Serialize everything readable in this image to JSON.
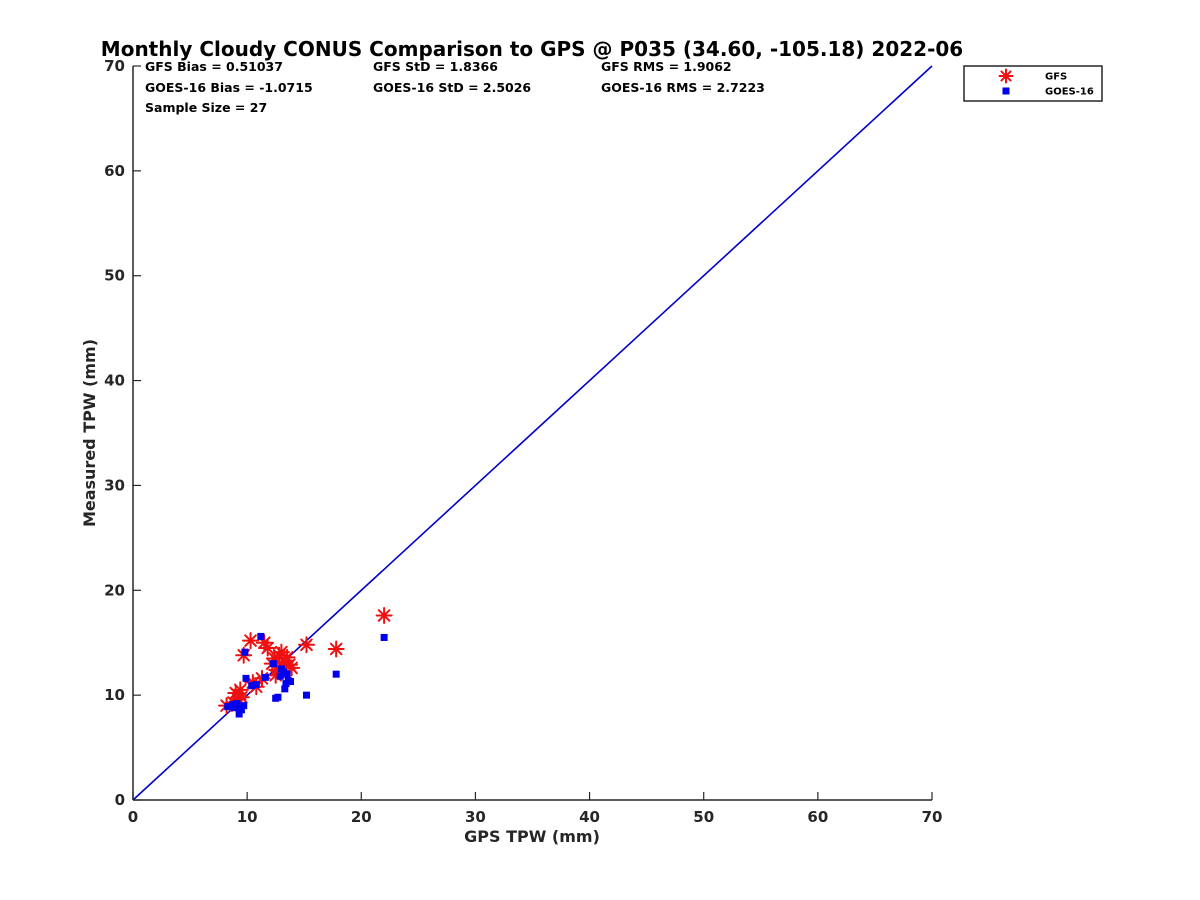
{
  "chart_data": {
    "type": "scatter",
    "title": "Monthly Cloudy CONUS Comparison to GPS @ P035 (34.60, -105.18) 2022-06",
    "xlabel": "GPS TPW (mm)",
    "ylabel": "Measured TPW (mm)",
    "xlim": [
      0,
      70
    ],
    "ylim": [
      0,
      70
    ],
    "xticks": [
      0,
      10,
      20,
      30,
      40,
      50,
      60,
      70
    ],
    "yticks": [
      0,
      10,
      20,
      30,
      40,
      50,
      60,
      70
    ],
    "grid": false,
    "legend_position": "top-right outside",
    "stats": [
      [
        "GFS Bias = 0.51037",
        "GFS StD = 1.8366",
        "GFS RMS = 1.9062"
      ],
      [
        "GOES-16 Bias = -1.0715",
        "GOES-16 StD = 2.5026",
        "GOES-16 RMS = 2.7223"
      ],
      [
        "Sample Size = 27"
      ]
    ],
    "reference_line": {
      "from": [
        0,
        0
      ],
      "to": [
        70,
        70
      ],
      "color": "#0000cc"
    },
    "series": [
      {
        "name": "GFS",
        "marker": "asterisk",
        "color": "#ee1111",
        "points": [
          [
            8.2,
            9.0
          ],
          [
            8.8,
            9.3
          ],
          [
            9.0,
            10.2
          ],
          [
            9.2,
            9.6
          ],
          [
            9.4,
            10.5
          ],
          [
            9.7,
            13.8
          ],
          [
            10.3,
            15.2
          ],
          [
            10.8,
            10.8
          ],
          [
            11.3,
            11.6
          ],
          [
            11.5,
            15.0
          ],
          [
            11.8,
            14.5
          ],
          [
            12.2,
            13.0
          ],
          [
            12.4,
            13.5
          ],
          [
            12.6,
            12.4
          ],
          [
            12.8,
            13.8
          ],
          [
            13.0,
            14.1
          ],
          [
            13.1,
            12.8
          ],
          [
            13.3,
            13.2
          ],
          [
            13.5,
            13.6
          ],
          [
            13.7,
            12.9
          ],
          [
            13.9,
            12.6
          ],
          [
            15.2,
            14.8
          ],
          [
            17.8,
            14.4
          ],
          [
            22.0,
            17.6
          ],
          [
            12.5,
            11.9
          ],
          [
            10.5,
            11.2
          ],
          [
            9.5,
            9.8
          ]
        ]
      },
      {
        "name": "GOES-16",
        "marker": "square",
        "color": "#0000ee",
        "points": [
          [
            8.3,
            8.9
          ],
          [
            8.9,
            8.8
          ],
          [
            9.1,
            9.2
          ],
          [
            9.3,
            8.2
          ],
          [
            9.5,
            8.6
          ],
          [
            9.8,
            14.1
          ],
          [
            9.9,
            11.6
          ],
          [
            10.8,
            11.0
          ],
          [
            11.2,
            15.6
          ],
          [
            11.6,
            11.7
          ],
          [
            12.5,
            9.7
          ],
          [
            12.7,
            9.8
          ],
          [
            12.9,
            11.8
          ],
          [
            13.2,
            12.2
          ],
          [
            13.3,
            10.6
          ],
          [
            13.4,
            11.1
          ],
          [
            13.6,
            11.4
          ],
          [
            13.8,
            11.3
          ],
          [
            15.2,
            10.0
          ],
          [
            17.8,
            12.0
          ],
          [
            22.0,
            15.5
          ],
          [
            12.3,
            13.0
          ],
          [
            13.0,
            12.5
          ],
          [
            10.4,
            10.9
          ],
          [
            9.7,
            9.0
          ],
          [
            8.7,
            9.1
          ],
          [
            13.5,
            12.0
          ]
        ]
      }
    ]
  }
}
